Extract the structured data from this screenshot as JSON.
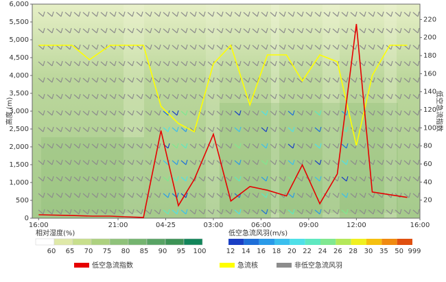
{
  "chart_data": {
    "type": "line",
    "ylabel": "高度 (m)",
    "y2label": "低空急流指数",
    "xlim": [
      -0.4,
      24
    ],
    "xticks": [
      {
        "value": 0,
        "label": "16:00"
      },
      {
        "value": 5,
        "label": "21:00"
      },
      {
        "value": 8,
        "label": "04-25"
      },
      {
        "value": 11,
        "label": "03:00"
      },
      {
        "value": 14,
        "label": "06:00"
      },
      {
        "value": 17,
        "label": "09:00"
      },
      {
        "value": 20,
        "label": "12:00"
      },
      {
        "value": 24,
        "label": "16:00"
      }
    ],
    "ylim": [
      0,
      6000
    ],
    "yticks": [
      0,
      500,
      {
        "value": 1000,
        "label": "1,000"
      },
      {
        "value": 1500,
        "label": "1,500"
      },
      {
        "value": 2000,
        "label": "2,000"
      },
      {
        "value": 2500,
        "label": "2,500"
      },
      {
        "value": 3000,
        "label": "3,000"
      },
      {
        "value": 3500,
        "label": "3,500"
      },
      {
        "value": 4000,
        "label": "4,000"
      },
      {
        "value": 4500,
        "label": "4,500"
      },
      {
        "value": 5000,
        "label": "5,000"
      },
      {
        "value": 5500,
        "label": "5,500"
      },
      {
        "value": 6000,
        "label": "6,000"
      }
    ],
    "y2lim": [
      0,
      237
    ],
    "y2ticks": [
      20,
      40,
      60,
      80,
      100,
      120,
      140,
      160,
      180,
      200,
      220
    ],
    "series": [
      {
        "name": "低空急流指数",
        "color": "#e60000",
        "axis": "y2",
        "x": [
          0,
          2.1,
          3.4,
          4.5,
          5.5,
          6.6,
          7.7,
          8.8,
          9.8,
          11,
          12.1,
          13.3,
          14.4,
          15.6,
          16.6,
          17.7,
          18.8,
          20,
          21,
          23.2
        ],
        "values": [
          3.8,
          3,
          2.3,
          2.3,
          1.5,
          0.8,
          97,
          14,
          43,
          93,
          19,
          35,
          31,
          24.6,
          59,
          16,
          49,
          215,
          29,
          23
        ]
      },
      {
        "name": "急流核",
        "color": "#ffff00",
        "x": [
          0,
          1.1,
          2.1,
          3.2,
          4.5,
          5.5,
          6.6,
          7.7,
          8.8,
          9.8,
          11,
          12.1,
          13.3,
          14.4,
          15.6,
          16.6,
          17.7,
          18.8,
          20,
          21,
          22.1,
          23.2
        ],
        "values": [
          4846,
          4846,
          4846,
          4442,
          4846,
          4846,
          4846,
          3135,
          2654,
          2423,
          4327,
          4846,
          3173,
          4577,
          4577,
          3846,
          4577,
          4385,
          2038,
          4000,
          4846,
          4846
        ]
      }
    ],
    "legend_extra": {
      "name": "非低空急流风羽",
      "color": "#8c8c8c"
    },
    "humidity_legend": {
      "title": "相对湿度(%)",
      "labels": [
        60,
        65,
        70,
        75,
        80,
        85,
        90,
        95,
        100
      ],
      "colors": [
        "#ffffff",
        "#dfe9a8",
        "#c8df8c",
        "#add17f",
        "#8fc27a",
        "#74b46f",
        "#58a364",
        "#3d9356",
        "#12855a"
      ]
    },
    "wind_legend": {
      "title": "低空急流风羽(m/s)",
      "labels": [
        12,
        14,
        16,
        18,
        20,
        22,
        24,
        26,
        28,
        30,
        35,
        50,
        999
      ],
      "colors": [
        "#1a3fc4",
        "#1f6fd8",
        "#2a9ae8",
        "#3bbfee",
        "#4fe0e8",
        "#5fe8c0",
        "#80e890",
        "#b5e85a",
        "#f0f020",
        "#f5c010",
        "#f08a10",
        "#e05010"
      ]
    }
  }
}
